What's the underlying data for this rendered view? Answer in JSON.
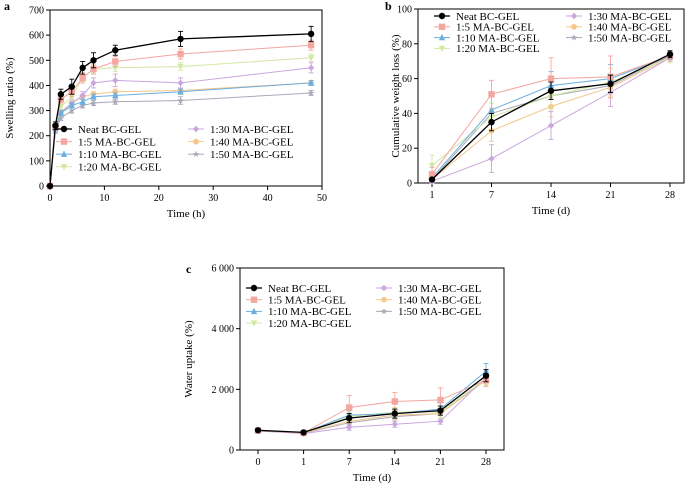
{
  "legend_names": [
    "Neat BC-GEL",
    "1:5 MA-BC-GEL",
    "1:10 MA-BC-GEL",
    "1:20 MA-BC-GEL",
    "1:30 MA-BC-GEL",
    "1:40 MA-BC-GEL",
    "1:50 MA-BC-GEL"
  ],
  "colors": [
    "#000000",
    "#f4a6a0",
    "#6aafe0",
    "#d2e8a4",
    "#c9a6dd",
    "#f4c68a",
    "#a9a9b8"
  ],
  "markers": [
    "circle",
    "square",
    "triangle",
    "triangle-down",
    "diamond",
    "pentagon",
    "star"
  ],
  "chart_data": [
    {
      "panel": "a",
      "type": "line",
      "xlabel": "Time (h)",
      "ylabel": "Swelling ratio (%)",
      "xlim": [
        0,
        50
      ],
      "ylim": [
        0,
        700
      ],
      "xticks": [
        0,
        10,
        20,
        30,
        40,
        50
      ],
      "yticks": [
        0,
        100,
        200,
        300,
        400,
        500,
        600,
        700
      ],
      "grid": false,
      "legend": {
        "placement": "bottom-right",
        "columns": 2
      },
      "x": [
        0,
        1,
        2,
        4,
        6,
        8,
        12,
        24,
        48
      ],
      "series": [
        {
          "name": "Neat BC-GEL",
          "values": [
            0,
            240,
            365,
            395,
            470,
            500,
            540,
            585,
            605
          ],
          "errors": [
            0,
            15,
            20,
            30,
            25,
            30,
            20,
            30,
            30
          ]
        },
        {
          "name": "1:5 MA-BC-GEL",
          "values": [
            0,
            235,
            345,
            375,
            430,
            465,
            495,
            525,
            560
          ],
          "errors": [
            0,
            10,
            15,
            20,
            20,
            20,
            20,
            20,
            20
          ]
        },
        {
          "name": "1:10 MA-BC-GEL",
          "values": [
            0,
            230,
            290,
            320,
            335,
            355,
            360,
            375,
            410
          ],
          "errors": [
            0,
            10,
            10,
            10,
            10,
            10,
            10,
            10,
            10
          ]
        },
        {
          "name": "1:20 MA-BC-GEL",
          "values": [
            0,
            230,
            315,
            355,
            430,
            465,
            470,
            475,
            510
          ],
          "errors": [
            0,
            10,
            10,
            15,
            15,
            15,
            15,
            15,
            15
          ]
        },
        {
          "name": "1:30 MA-BC-GEL",
          "values": [
            0,
            225,
            290,
            330,
            360,
            410,
            420,
            410,
            470
          ],
          "errors": [
            0,
            10,
            10,
            15,
            15,
            20,
            25,
            20,
            20
          ]
        },
        {
          "name": "1:40 MA-BC-GEL",
          "values": [
            0,
            225,
            295,
            330,
            355,
            365,
            375,
            380,
            410
          ],
          "errors": [
            0,
            10,
            10,
            10,
            10,
            10,
            10,
            10,
            10
          ]
        },
        {
          "name": "1:50 MA-BC-GEL",
          "values": [
            0,
            220,
            270,
            300,
            320,
            330,
            335,
            340,
            370
          ],
          "errors": [
            0,
            10,
            10,
            10,
            10,
            10,
            10,
            15,
            10
          ]
        }
      ]
    },
    {
      "panel": "b",
      "type": "line",
      "xlabel": "Time (d)",
      "ylabel": "Cumulative weight loss (%)",
      "xlim": [
        1,
        28
      ],
      "ylim": [
        0,
        100
      ],
      "xticks": [
        1,
        7,
        14,
        21,
        28
      ],
      "yticks": [
        0,
        20,
        40,
        60,
        80,
        100
      ],
      "grid": false,
      "legend": {
        "placement": "top-left",
        "columns": 2
      },
      "x": [
        1,
        7,
        14,
        21,
        28
      ],
      "series": [
        {
          "name": "Neat BC-GEL",
          "values": [
            2,
            35,
            53,
            57,
            74
          ],
          "errors": [
            1,
            5,
            5,
            5,
            2
          ]
        },
        {
          "name": "1:5 MA-BC-GEL",
          "values": [
            5,
            51,
            60,
            61,
            73
          ],
          "errors": [
            4,
            8,
            12,
            12,
            3
          ]
        },
        {
          "name": "1:10 MA-BC-GEL",
          "values": [
            3,
            42,
            56,
            60,
            73
          ],
          "errors": [
            2,
            8,
            8,
            8,
            2
          ]
        },
        {
          "name": "1:20 MA-BC-GEL",
          "values": [
            10,
            38,
            50,
            58,
            72
          ],
          "errors": [
            6,
            8,
            8,
            8,
            3
          ]
        },
        {
          "name": "1:30 MA-BC-GEL",
          "values": [
            1,
            14,
            33,
            52,
            72
          ],
          "errors": [
            1,
            8,
            8,
            8,
            2
          ]
        },
        {
          "name": "1:40 MA-BC-GEL",
          "values": [
            2,
            30,
            44,
            55,
            72
          ],
          "errors": [
            1,
            6,
            6,
            6,
            2
          ]
        },
        {
          "name": "1:50 MA-BC-GEL",
          "values": [
            2,
            40,
            50,
            56,
            73
          ],
          "errors": [
            1,
            6,
            6,
            6,
            2
          ]
        }
      ]
    },
    {
      "panel": "c",
      "type": "line",
      "xlabel": "Time (d)",
      "ylabel": "Water uptake (%)",
      "xlim": [
        0,
        28
      ],
      "ylim": [
        0,
        6000
      ],
      "xticks": [
        0,
        1,
        7,
        14,
        21,
        28
      ],
      "xtick_labels": [
        "0",
        "1",
        "7",
        "14",
        "21",
        "28"
      ],
      "yticks": [
        0,
        2000,
        4000,
        6000
      ],
      "ytick_labels": [
        "0",
        "2 000",
        "4 000",
        "6 000"
      ],
      "grid": false,
      "legend": {
        "placement": "top-left",
        "columns": 2
      },
      "x": [
        0,
        1,
        7,
        14,
        21,
        28
      ],
      "series": [
        {
          "name": "Neat BC-GEL",
          "values": [
            650,
            580,
            1050,
            1200,
            1300,
            2450
          ],
          "errors": [
            50,
            50,
            150,
            150,
            150,
            200
          ]
        },
        {
          "name": "1:5 MA-BC-GEL",
          "values": [
            640,
            560,
            1400,
            1600,
            1650,
            2300
          ],
          "errors": [
            50,
            50,
            400,
            300,
            400,
            200
          ]
        },
        {
          "name": "1:10 MA-BC-GEL",
          "values": [
            640,
            570,
            1150,
            1200,
            1350,
            2600
          ],
          "errors": [
            50,
            50,
            150,
            150,
            200,
            250
          ]
        },
        {
          "name": "1:20 MA-BC-GEL",
          "values": [
            650,
            560,
            1100,
            1250,
            1250,
            2350
          ],
          "errors": [
            50,
            50,
            150,
            150,
            200,
            200
          ]
        },
        {
          "name": "1:30 MA-BC-GEL",
          "values": [
            630,
            540,
            750,
            850,
            950,
            2400
          ],
          "errors": [
            50,
            50,
            100,
            100,
            100,
            200
          ]
        },
        {
          "name": "1:40 MA-BC-GEL",
          "values": [
            640,
            560,
            950,
            1150,
            1200,
            2300
          ],
          "errors": [
            50,
            50,
            150,
            150,
            150,
            200
          ]
        },
        {
          "name": "1:50 MA-BC-GEL",
          "values": [
            630,
            550,
            900,
            1100,
            1200,
            2350
          ],
          "errors": [
            50,
            50,
            150,
            150,
            150,
            200
          ]
        }
      ]
    }
  ]
}
